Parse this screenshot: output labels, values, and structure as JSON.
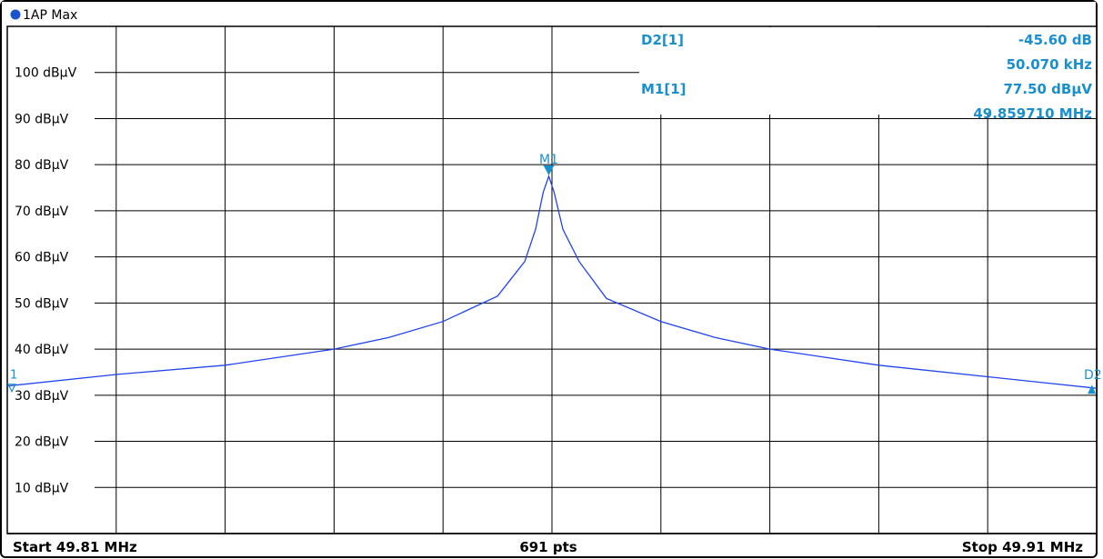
{
  "trace_label": "1AP Max",
  "footer": {
    "start": "Start 49.81 MHz",
    "points": "691 pts",
    "stop": "Stop 49.91 MHz"
  },
  "markers": {
    "d2_name": "D2[1]",
    "d2_level": "-45.60 dB",
    "d2_freq": "50.070 kHz",
    "m1_name": "M1[1]",
    "m1_level": "77.50 dBµV",
    "m1_freq": "49.859710 MHz",
    "m1_tag": "M1",
    "left_ref_tag": "1",
    "right_tag": "D2"
  },
  "colors": {
    "trace": "#2244ee",
    "marker": "#1a8fd0",
    "grid": "#000000"
  },
  "chart_data": {
    "type": "line",
    "xlim": [
      49.81,
      49.91
    ],
    "ylim": [
      0,
      110
    ],
    "ylabel_ticks": [
      "100 dBµV",
      "90 dBµV",
      "80 dBµV",
      "70 dBµV",
      "60 dBµV",
      "50 dBµV",
      "40 dBµV",
      "30 dBµV",
      "20 dBµV",
      "10 dBµV"
    ],
    "y_tick_values": [
      100,
      90,
      80,
      70,
      60,
      50,
      40,
      30,
      20,
      10
    ],
    "x_divisions": 10,
    "series": [
      {
        "x": [
          49.81,
          49.82,
          49.83,
          49.84,
          49.845,
          49.85,
          49.855,
          49.8575,
          49.8585,
          49.8592,
          49.85971,
          49.8602,
          49.861,
          49.8625,
          49.865,
          49.87,
          49.875,
          49.88,
          49.89,
          49.9,
          49.91
        ],
        "y": [
          32.0,
          34.5,
          36.5,
          40.0,
          42.5,
          46.0,
          51.5,
          59.0,
          66.0,
          74.0,
          77.5,
          74.0,
          66.0,
          59.0,
          51.0,
          46.0,
          42.5,
          40.0,
          36.5,
          34.0,
          31.5
        ]
      }
    ]
  }
}
